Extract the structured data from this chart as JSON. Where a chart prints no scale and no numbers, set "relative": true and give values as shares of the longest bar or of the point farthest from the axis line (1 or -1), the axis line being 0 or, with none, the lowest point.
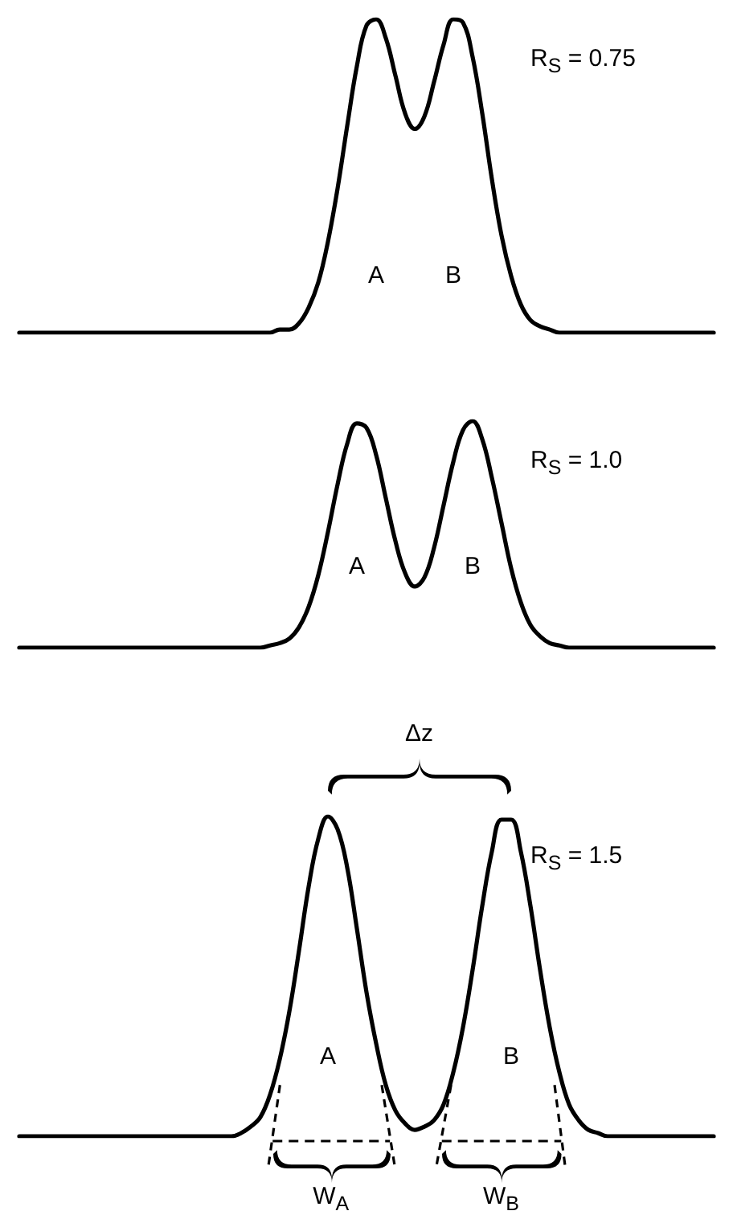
{
  "chart_data": [
    {
      "type": "line",
      "relative": true,
      "color": "#000000",
      "categories": [
        null,
        null,
        null,
        null,
        null,
        null,
        null,
        null,
        null,
        null,
        null,
        null,
        null,
        null,
        null,
        null,
        null,
        null,
        null,
        null,
        null,
        null,
        null,
        null,
        null,
        null,
        null,
        null,
        null,
        null,
        null,
        null,
        null,
        null,
        null,
        null,
        null,
        null,
        null,
        null,
        null,
        null,
        null,
        null,
        null,
        null,
        null,
        null,
        null,
        null,
        null,
        null,
        null,
        null,
        null,
        null,
        null,
        null,
        null,
        null,
        null,
        null,
        null,
        null,
        null,
        null,
        null,
        null,
        null,
        null,
        null,
        null,
        null
      ],
      "values": [
        0,
        0,
        0,
        0,
        0,
        0,
        0,
        0,
        0,
        0,
        0,
        0,
        0,
        0,
        0,
        0,
        0,
        0,
        0,
        0,
        0,
        0,
        0,
        0,
        0,
        0,
        0,
        0.01,
        0.01,
        0.03,
        0.08,
        0.16,
        0.29,
        0.46,
        0.66,
        0.85,
        0.98,
        1.0,
        0.94,
        0.82,
        0.7,
        0.65,
        0.69,
        0.8,
        0.92,
        1.0,
        0.99,
        0.88,
        0.7,
        0.49,
        0.31,
        0.18,
        0.09,
        0.04,
        0.02,
        0.01,
        0,
        0,
        0,
        0,
        0,
        0,
        0,
        0,
        0,
        0,
        0,
        0,
        0,
        0,
        0,
        0,
        0
      ],
      "annotations": [
        "A",
        "B",
        "R$_{S}$ = 0.75"
      ]
    },
    {
      "type": "line",
      "relative": true,
      "color": "#000000",
      "categories": [
        null,
        null,
        null,
        null,
        null,
        null,
        null,
        null,
        null,
        null,
        null,
        null,
        null,
        null,
        null,
        null,
        null,
        null,
        null,
        null,
        null,
        null,
        null,
        null,
        null,
        null,
        null,
        null,
        null,
        null,
        null,
        null,
        null,
        null,
        null,
        null,
        null,
        null,
        null,
        null,
        null,
        null,
        null,
        null,
        null,
        null,
        null,
        null,
        null,
        null,
        null,
        null,
        null,
        null,
        null,
        null,
        null,
        null,
        null,
        null,
        null,
        null,
        null,
        null,
        null,
        null,
        null,
        null,
        null,
        null,
        null,
        null,
        null
      ],
      "values": [
        0,
        0,
        0,
        0,
        0,
        0,
        0,
        0,
        0,
        0,
        0,
        0,
        0,
        0,
        0,
        0,
        0,
        0,
        0,
        0,
        0,
        0,
        0,
        0,
        0,
        0,
        0.01,
        0.02,
        0.04,
        0.09,
        0.18,
        0.32,
        0.51,
        0.72,
        0.9,
        0.99,
        0.97,
        0.85,
        0.66,
        0.47,
        0.33,
        0.27,
        0.31,
        0.44,
        0.63,
        0.82,
        0.96,
        1.0,
        0.92,
        0.75,
        0.55,
        0.35,
        0.2,
        0.1,
        0.05,
        0.02,
        0.01,
        0,
        0,
        0,
        0,
        0,
        0,
        0,
        0,
        0,
        0,
        0,
        0,
        0,
        0,
        0,
        0
      ],
      "annotations": [
        "A",
        "B",
        "R$_{S}$ = 1.0"
      ]
    },
    {
      "type": "line",
      "relative": true,
      "color": "#000000",
      "categories": [
        null,
        null,
        null,
        null,
        null,
        null,
        null,
        null,
        null,
        null,
        null,
        null,
        null,
        null,
        null,
        null,
        null,
        null,
        null,
        null,
        null,
        null,
        null,
        null,
        null,
        null,
        null,
        null,
        null,
        null,
        null,
        null,
        null,
        null,
        null,
        null,
        null,
        null,
        null,
        null,
        null,
        null,
        null,
        null,
        null,
        null,
        null,
        null,
        null,
        null,
        null,
        null,
        null,
        null,
        null,
        null,
        null,
        null,
        null,
        null,
        null,
        null,
        null,
        null,
        null,
        null,
        null,
        null,
        null,
        null,
        null,
        null,
        null
      ],
      "values": [
        0,
        0,
        0,
        0,
        0,
        0,
        0,
        0,
        0,
        0,
        0,
        0,
        0,
        0,
        0,
        0,
        0,
        0,
        0,
        0,
        0,
        0,
        0,
        0.01,
        0.03,
        0.06,
        0.13,
        0.24,
        0.39,
        0.58,
        0.78,
        0.93,
        1.0,
        0.96,
        0.84,
        0.65,
        0.45,
        0.29,
        0.16,
        0.08,
        0.04,
        0.02,
        0.03,
        0.05,
        0.1,
        0.2,
        0.34,
        0.52,
        0.72,
        0.89,
        0.99,
        0.99,
        0.89,
        0.72,
        0.52,
        0.34,
        0.2,
        0.1,
        0.05,
        0.02,
        0.01,
        0,
        0,
        0,
        0,
        0,
        0,
        0,
        0,
        0,
        0,
        0,
        0
      ],
      "annotations": [
        "A",
        "B",
        "R$_{S}$ = 1.5",
        "Δz",
        "W$_{A}$",
        "W$_{B}$"
      ]
    }
  ]
}
